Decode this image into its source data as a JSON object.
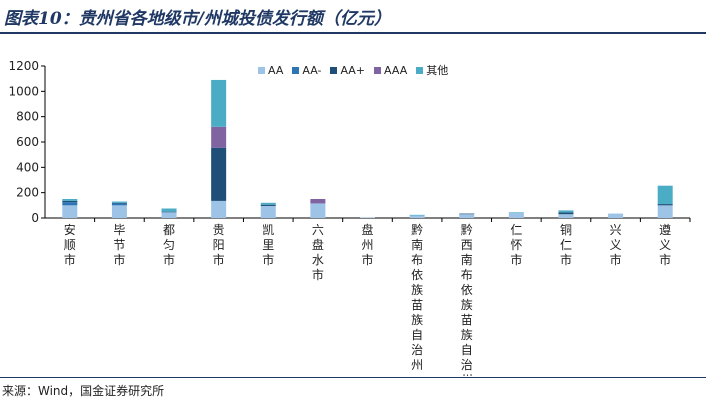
{
  "header": {
    "title": "图表10：贵州省各地级市/州城投债发行额（亿元）"
  },
  "footer": {
    "source": "来源：Wind，国金证券研究所"
  },
  "colors": {
    "AA": "#9dc3e6",
    "AA-": "#2e75b6",
    "AA+": "#1f4e79",
    "AAA": "#8064a2",
    "other": "#4bacc6",
    "title": "#1f3864"
  },
  "chart_data": {
    "type": "bar",
    "stacked": true,
    "categories": [
      "安顺市",
      "毕节市",
      "都匀市",
      "贵阳市",
      "凯里市",
      "六盘水市",
      "盘州市",
      "黔南布依族苗族自治州",
      "黔西南布依族苗族自治州",
      "仁怀市",
      "铜仁市",
      "兴义市",
      "遵义市"
    ],
    "series": [
      {
        "name": "AA",
        "values": [
          100,
          100,
          45,
          135,
          95,
          115,
          5,
          20,
          30,
          40,
          30,
          35,
          100
        ]
      },
      {
        "name": "AA-",
        "values": [
          25,
          15,
          0,
          0,
          0,
          0,
          0,
          0,
          0,
          0,
          0,
          0,
          0
        ]
      },
      {
        "name": "AA+",
        "values": [
          10,
          5,
          5,
          420,
          10,
          0,
          0,
          0,
          5,
          0,
          15,
          0,
          10
        ]
      },
      {
        "name": "AAA",
        "values": [
          0,
          0,
          0,
          165,
          0,
          35,
          0,
          0,
          0,
          0,
          0,
          0,
          0
        ]
      },
      {
        "name": "其他",
        "values": [
          15,
          10,
          25,
          370,
          15,
          0,
          0,
          5,
          0,
          5,
          15,
          0,
          145
        ]
      }
    ],
    "ylim": [
      0,
      1200
    ],
    "yticks": [
      0,
      200,
      400,
      600,
      800,
      1000,
      1200
    ],
    "legend": "top-center",
    "grid": false
  }
}
